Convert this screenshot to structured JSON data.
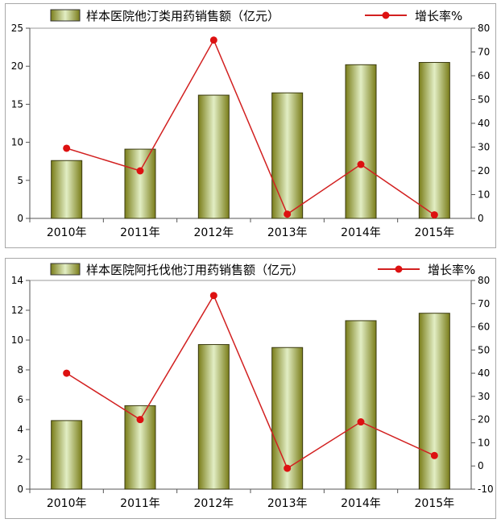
{
  "chart_data": [
    {
      "type": "bar",
      "categories": [
        "2010年",
        "2011年",
        "2012年",
        "2013年",
        "2014年",
        "2015年"
      ],
      "series": [
        {
          "name": "样本医院他汀类用药销售额（亿元）",
          "type": "bar",
          "axis": "left",
          "values": [
            7.6,
            9.1,
            16.2,
            16.5,
            20.2,
            20.5
          ]
        },
        {
          "name": "增长率%",
          "type": "line",
          "axis": "right",
          "values": [
            29.5,
            20.0,
            75.0,
            1.8,
            22.7,
            1.5
          ]
        }
      ],
      "ylim": [
        0,
        25
      ],
      "yticks": [
        0,
        5,
        10,
        15,
        20,
        25
      ],
      "y2lim": [
        0,
        80
      ],
      "y2ticks": [
        0,
        10,
        20,
        30,
        40,
        50,
        60,
        70,
        80
      ],
      "legend": "top",
      "grid": false
    },
    {
      "type": "bar",
      "categories": [
        "2010年",
        "2011年",
        "2012年",
        "2013年",
        "2014年",
        "2015年"
      ],
      "series": [
        {
          "name": "样本医院阿托伐他汀用药销售额（亿元）",
          "type": "bar",
          "axis": "left",
          "values": [
            4.6,
            5.6,
            9.7,
            9.5,
            11.3,
            11.8
          ]
        },
        {
          "name": "增长率%",
          "type": "line",
          "axis": "right",
          "values": [
            40.0,
            20.0,
            73.5,
            -1.0,
            19.0,
            4.5
          ]
        }
      ],
      "ylim": [
        0,
        14
      ],
      "yticks": [
        0,
        2,
        4,
        6,
        8,
        10,
        12,
        14
      ],
      "y2lim": [
        -10,
        80
      ],
      "y2ticks": [
        -10,
        0,
        10,
        20,
        30,
        40,
        50,
        60,
        70,
        80
      ],
      "legend": "top",
      "grid": false
    }
  ],
  "colors": {
    "bar_dark": "#7a7d1a",
    "bar_light": "#e2eec4",
    "line": "#d22020",
    "marker": "#dd1111"
  }
}
